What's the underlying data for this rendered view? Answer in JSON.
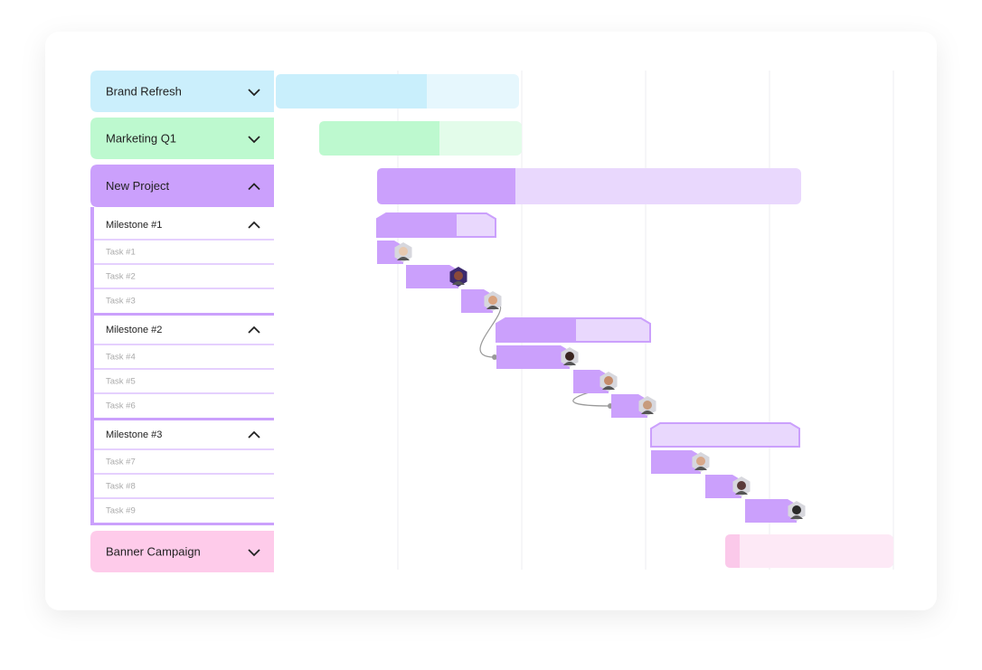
{
  "projects": [
    {
      "name": "Brand Refresh"
    },
    {
      "name": "Marketing Q1"
    },
    {
      "name": "New Project",
      "milestones": [
        {
          "name": "Milestone #1",
          "tasks": [
            "Task #1",
            "Task #2",
            "Task #3"
          ]
        },
        {
          "name": "Milestone #2",
          "tasks": [
            "Task #4",
            "Task #5",
            "Task #6"
          ]
        },
        {
          "name": "Milestone #3",
          "tasks": [
            "Task #7",
            "Task #8",
            "Task #9"
          ]
        }
      ]
    },
    {
      "name": "Banner Campaign"
    }
  ]
}
